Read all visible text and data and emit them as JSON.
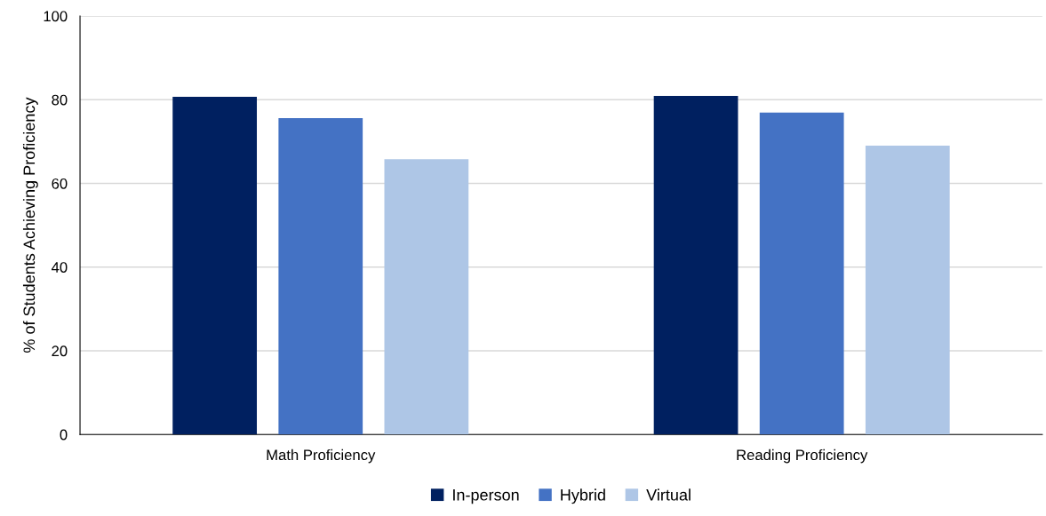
{
  "chart_data": {
    "type": "bar",
    "ylabel": "% of Students Achieving Proficiency",
    "categories": [
      "Math Proficiency",
      "Reading Proficiency"
    ],
    "series": [
      {
        "name": "In-person",
        "color": "#002060",
        "values": [
          80.7,
          80.9
        ]
      },
      {
        "name": "Hybrid",
        "color": "#4472c4",
        "values": [
          75.6,
          76.9
        ]
      },
      {
        "name": "Virtual",
        "color": "#aec6e6",
        "values": [
          65.8,
          69
        ]
      }
    ],
    "ylim": [
      0,
      100
    ],
    "yticks": [
      0,
      20,
      40,
      60,
      80,
      100
    ],
    "grid": "y",
    "legend": "bottom"
  }
}
